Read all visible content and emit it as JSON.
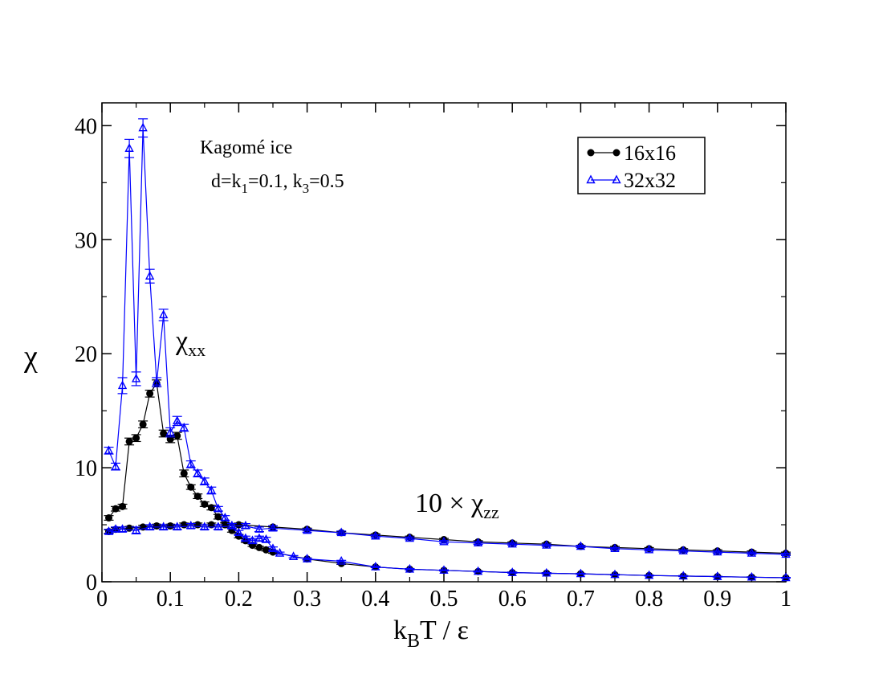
{
  "chart_data": {
    "type": "line",
    "xlabel_main": "k",
    "xlabel_sub": "B",
    "xlabel_rest": "T / ε",
    "ylabel": "χ",
    "xlim": [
      0,
      1
    ],
    "ylim": [
      0,
      42
    ],
    "x_ticks": [
      0,
      0.1,
      0.2,
      0.3,
      0.4,
      0.5,
      0.6,
      0.7,
      0.8,
      0.9,
      1
    ],
    "x_tick_labels": [
      "0",
      "0.1",
      "0.2",
      "0.3",
      "0.4",
      "0.5",
      "0.6",
      "0.7",
      "0.8",
      "0.9",
      "1"
    ],
    "y_ticks": [
      0,
      10,
      20,
      30,
      40
    ],
    "y_tick_labels": [
      "0",
      "10",
      "20",
      "30",
      "40"
    ],
    "annotations": {
      "title_line1": "Kagomé ice",
      "title_line2_a": "d=k",
      "title_line2_sub1": "1",
      "title_line2_b": "=0.1, k",
      "title_line2_sub3": "3",
      "title_line2_c": "=0.5",
      "chi_xx_main": "χ",
      "chi_xx_sub": "xx",
      "chi_zz_prefix": "10 × χ",
      "chi_zz_sub": "zz"
    },
    "legend": {
      "position": "top-right",
      "entries": [
        "16x16",
        "32x32"
      ]
    },
    "colors": {
      "series_16": "#000000",
      "series_32": "#0000ff"
    },
    "series": [
      {
        "name": "16x16 χxx",
        "legend_entry": "16x16",
        "marker": "circle",
        "x": [
          0.01,
          0.02,
          0.03,
          0.04,
          0.05,
          0.06,
          0.07,
          0.08,
          0.09,
          0.1,
          0.11,
          0.12,
          0.13,
          0.14,
          0.15,
          0.16,
          0.17,
          0.18,
          0.19,
          0.2,
          0.21,
          0.22,
          0.23,
          0.24,
          0.25,
          0.3,
          0.35,
          0.4,
          0.45,
          0.5,
          0.55,
          0.6,
          0.65,
          0.7,
          0.75,
          0.8,
          0.85,
          0.9,
          0.95,
          1.0
        ],
        "y": [
          5.6,
          6.4,
          6.6,
          12.3,
          12.6,
          13.8,
          16.5,
          17.4,
          13.0,
          12.5,
          12.8,
          9.5,
          8.3,
          7.5,
          6.8,
          6.5,
          5.7,
          5.0,
          4.5,
          4.0,
          3.6,
          3.2,
          3.0,
          2.8,
          2.6,
          2.0,
          1.6,
          1.3,
          1.1,
          1.0,
          0.9,
          0.8,
          0.75,
          0.7,
          0.62,
          0.55,
          0.5,
          0.45,
          0.4,
          0.35
        ],
        "err": [
          0.2,
          0.2,
          0.2,
          0.3,
          0.3,
          0.3,
          0.3,
          0.3,
          0.3,
          0.3,
          0.3,
          0.3,
          0.2,
          0.2,
          0.2,
          0.2,
          0.2,
          0.2,
          0.15,
          0.15,
          0.15,
          0.1,
          0.1,
          0.1,
          0.1,
          0.08,
          0.08,
          0.06,
          0.06,
          0.05,
          0.05,
          0.05,
          0.05,
          0.04,
          0.04,
          0.04,
          0.04,
          0.03,
          0.03,
          0.03
        ]
      },
      {
        "name": "32x32 χxx",
        "legend_entry": "32x32",
        "marker": "triangle",
        "x": [
          0.01,
          0.02,
          0.03,
          0.04,
          0.05,
          0.06,
          0.07,
          0.08,
          0.09,
          0.1,
          0.11,
          0.12,
          0.13,
          0.14,
          0.15,
          0.16,
          0.17,
          0.18,
          0.19,
          0.2,
          0.21,
          0.22,
          0.23,
          0.24,
          0.25,
          0.26,
          0.28,
          0.3,
          0.35,
          0.4,
          0.45,
          0.5,
          0.55,
          0.6,
          0.65,
          0.7,
          0.75,
          0.8,
          0.85,
          0.9,
          0.95,
          1.0
        ],
        "y": [
          11.5,
          10.1,
          17.2,
          38.0,
          17.8,
          39.8,
          26.8,
          17.5,
          23.4,
          13.1,
          14.1,
          13.5,
          10.3,
          9.5,
          8.8,
          8.0,
          6.4,
          5.6,
          4.9,
          4.3,
          3.8,
          3.6,
          3.8,
          3.7,
          2.9,
          2.5,
          2.2,
          2.0,
          1.8,
          1.3,
          1.1,
          1.0,
          0.9,
          0.8,
          0.75,
          0.7,
          0.62,
          0.55,
          0.5,
          0.45,
          0.4,
          0.35
        ],
        "err": [
          0.3,
          0.3,
          0.7,
          0.8,
          0.6,
          0.8,
          0.6,
          0.4,
          0.5,
          0.4,
          0.4,
          0.3,
          0.3,
          0.3,
          0.3,
          0.3,
          0.2,
          0.2,
          0.2,
          0.2,
          0.2,
          0.2,
          0.2,
          0.2,
          0.15,
          0.1,
          0.1,
          0.08,
          0.08,
          0.06,
          0.06,
          0.05,
          0.05,
          0.05,
          0.05,
          0.04,
          0.04,
          0.04,
          0.04,
          0.03,
          0.03,
          0.03
        ]
      },
      {
        "name": "16x16 10×χzz",
        "legend_entry": "16x16",
        "marker": "circle",
        "x": [
          0.01,
          0.02,
          0.04,
          0.06,
          0.08,
          0.1,
          0.12,
          0.14,
          0.16,
          0.18,
          0.2,
          0.25,
          0.3,
          0.35,
          0.4,
          0.45,
          0.5,
          0.55,
          0.6,
          0.65,
          0.7,
          0.75,
          0.8,
          0.85,
          0.9,
          0.95,
          1.0
        ],
        "y": [
          4.4,
          4.6,
          4.7,
          4.8,
          4.9,
          4.9,
          5.0,
          5.0,
          5.0,
          5.0,
          5.0,
          4.8,
          4.6,
          4.3,
          4.1,
          3.9,
          3.7,
          3.5,
          3.4,
          3.3,
          3.1,
          3.0,
          2.9,
          2.8,
          2.7,
          2.6,
          2.5
        ],
        "err": [
          0.15,
          0.15,
          0.15,
          0.15,
          0.15,
          0.15,
          0.15,
          0.15,
          0.15,
          0.15,
          0.15,
          0.1,
          0.1,
          0.1,
          0.1,
          0.1,
          0.1,
          0.1,
          0.1,
          0.1,
          0.1,
          0.1,
          0.1,
          0.1,
          0.1,
          0.1,
          0.1
        ]
      },
      {
        "name": "32x32 10×χzz",
        "legend_entry": "32x32",
        "marker": "triangle",
        "x": [
          0.01,
          0.02,
          0.03,
          0.05,
          0.07,
          0.09,
          0.11,
          0.13,
          0.15,
          0.17,
          0.19,
          0.21,
          0.23,
          0.25,
          0.3,
          0.35,
          0.4,
          0.45,
          0.5,
          0.55,
          0.6,
          0.65,
          0.7,
          0.75,
          0.8,
          0.85,
          0.9,
          0.95,
          1.0
        ],
        "y": [
          4.4,
          4.6,
          4.6,
          4.5,
          4.8,
          4.8,
          4.8,
          4.9,
          4.8,
          4.8,
          4.9,
          4.9,
          4.6,
          4.7,
          4.5,
          4.3,
          4.0,
          3.8,
          3.5,
          3.4,
          3.3,
          3.2,
          3.1,
          2.9,
          2.8,
          2.7,
          2.6,
          2.5,
          2.4
        ],
        "err": [
          0.2,
          0.2,
          0.2,
          0.3,
          0.2,
          0.2,
          0.2,
          0.2,
          0.2,
          0.2,
          0.2,
          0.2,
          0.2,
          0.2,
          0.15,
          0.15,
          0.12,
          0.12,
          0.12,
          0.12,
          0.1,
          0.1,
          0.1,
          0.1,
          0.1,
          0.1,
          0.1,
          0.1,
          0.1
        ]
      }
    ]
  }
}
